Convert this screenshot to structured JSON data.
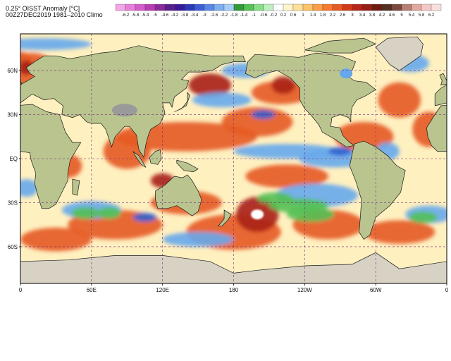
{
  "header": {
    "title_line1": "0.25° OISST Anomaly [°C]",
    "title_line2": "00Z27DEC2019  1981–2010 Climo"
  },
  "colorbar": {
    "ticks": [
      "-6.2",
      "-5.8",
      "-5.4",
      "-5",
      "-4.6",
      "-4.2",
      "-3.8",
      "-3.4",
      "-3",
      "-2.6",
      "-2.2",
      "-1.8",
      "-1.4",
      "-1",
      "-0.6",
      "-0.2",
      "0.2",
      "0.6",
      "1",
      "1.4",
      "1.8",
      "2.2",
      "2.6",
      "3",
      "3.4",
      "3.8",
      "4.2",
      "4.6",
      "5",
      "5.4",
      "5.8",
      "6.2"
    ],
    "colors": [
      "#f3a6e6",
      "#e87fda",
      "#d65ccc",
      "#b83cb4",
      "#8c2a9c",
      "#5a1e8a",
      "#3a1a9a",
      "#2a3ab8",
      "#3d5fd6",
      "#5a86e6",
      "#7cb0f2",
      "#a4cdf8",
      "#2f9a3a",
      "#55c255",
      "#86df86",
      "#bfefbf",
      "#ffffff",
      "#fff4c8",
      "#ffe09a",
      "#ffc36a",
      "#ff9e48",
      "#f77a32",
      "#e85a24",
      "#d23a1a",
      "#b8261a",
      "#962014",
      "#6e1c10",
      "#543024",
      "#7a4a3c",
      "#b88070",
      "#e4a8a0",
      "#f4c8c4",
      "#fae0dc"
    ]
  },
  "axes": {
    "y_labels": [
      "60N",
      "30N",
      "EQ",
      "30S",
      "60S"
    ],
    "x_labels": [
      "0",
      "60E",
      "120E",
      "180",
      "120W",
      "60W",
      "0"
    ]
  },
  "map_colors": {
    "land": "#b9c48f",
    "ice": "#ececec",
    "warm": "#e65a24",
    "hot": "#a82018",
    "cool": "#66a8ec",
    "cold": "#2f5fd0",
    "green": "#54c054",
    "pale": "#fff0c0"
  }
}
